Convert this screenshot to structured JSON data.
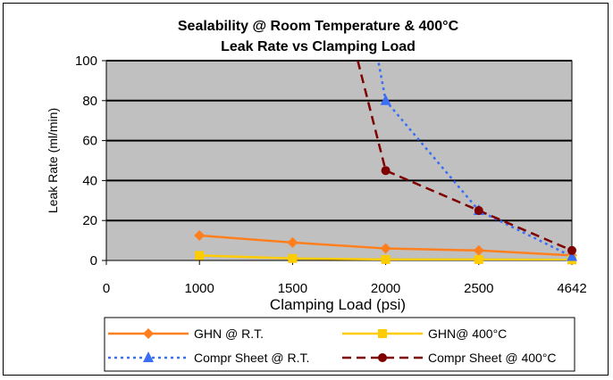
{
  "chart_data": {
    "type": "line",
    "title": [
      "Sealability @ Room Temperature & 400°C",
      "Leak Rate vs Clamping Load"
    ],
    "xlabel": "Clamping Load (psi)",
    "ylabel": "Leak Rate (ml/min)",
    "categories": [
      "0",
      "1000",
      "1500",
      "2000",
      "2500",
      "4642"
    ],
    "ylim": [
      0,
      100
    ],
    "yticks": [
      0,
      20,
      40,
      60,
      80,
      100
    ],
    "grid": "horizontal",
    "plot_background": "#c0c0c0",
    "legend_placement": "bottom",
    "series": [
      {
        "name": "GHN @ R.T.",
        "color": "#ff7f1e",
        "marker": "diamond",
        "dash": "solid",
        "points": [
          [
            "1000",
            12.5
          ],
          [
            "1500",
            9
          ],
          [
            "2000",
            6
          ],
          [
            "2500",
            5
          ],
          [
            "4642",
            2.5
          ]
        ]
      },
      {
        "name": "GHN@ 400°C",
        "color": "#ffcc00",
        "marker": "square",
        "dash": "solid",
        "points": [
          [
            "1000",
            2.5
          ],
          [
            "1500",
            1
          ],
          [
            "2000",
            0.5
          ],
          [
            "2500",
            0.5
          ],
          [
            "4642",
            0.3
          ]
        ]
      },
      {
        "name": "Compr Sheet @ R.T.",
        "color": "#3a6ff5",
        "marker": "triangle",
        "dash": "dotted",
        "points": [
          [
            "2000",
            80
          ],
          [
            "2500",
            25
          ],
          [
            "4642",
            2
          ]
        ],
        "upper_segment": {
          "from": [
            "1950",
            105
          ],
          "to": [
            "2000",
            80
          ]
        }
      },
      {
        "name": "Compr Sheet @ 400°C",
        "color": "#7f0000",
        "marker": "circle",
        "dash": "dashed",
        "points": [
          [
            "2000",
            45
          ],
          [
            "2500",
            25
          ],
          [
            "4642",
            5
          ]
        ],
        "upper_segment": {
          "from": [
            "1850",
            100
          ],
          "to": [
            "2000",
            45
          ]
        }
      }
    ]
  }
}
